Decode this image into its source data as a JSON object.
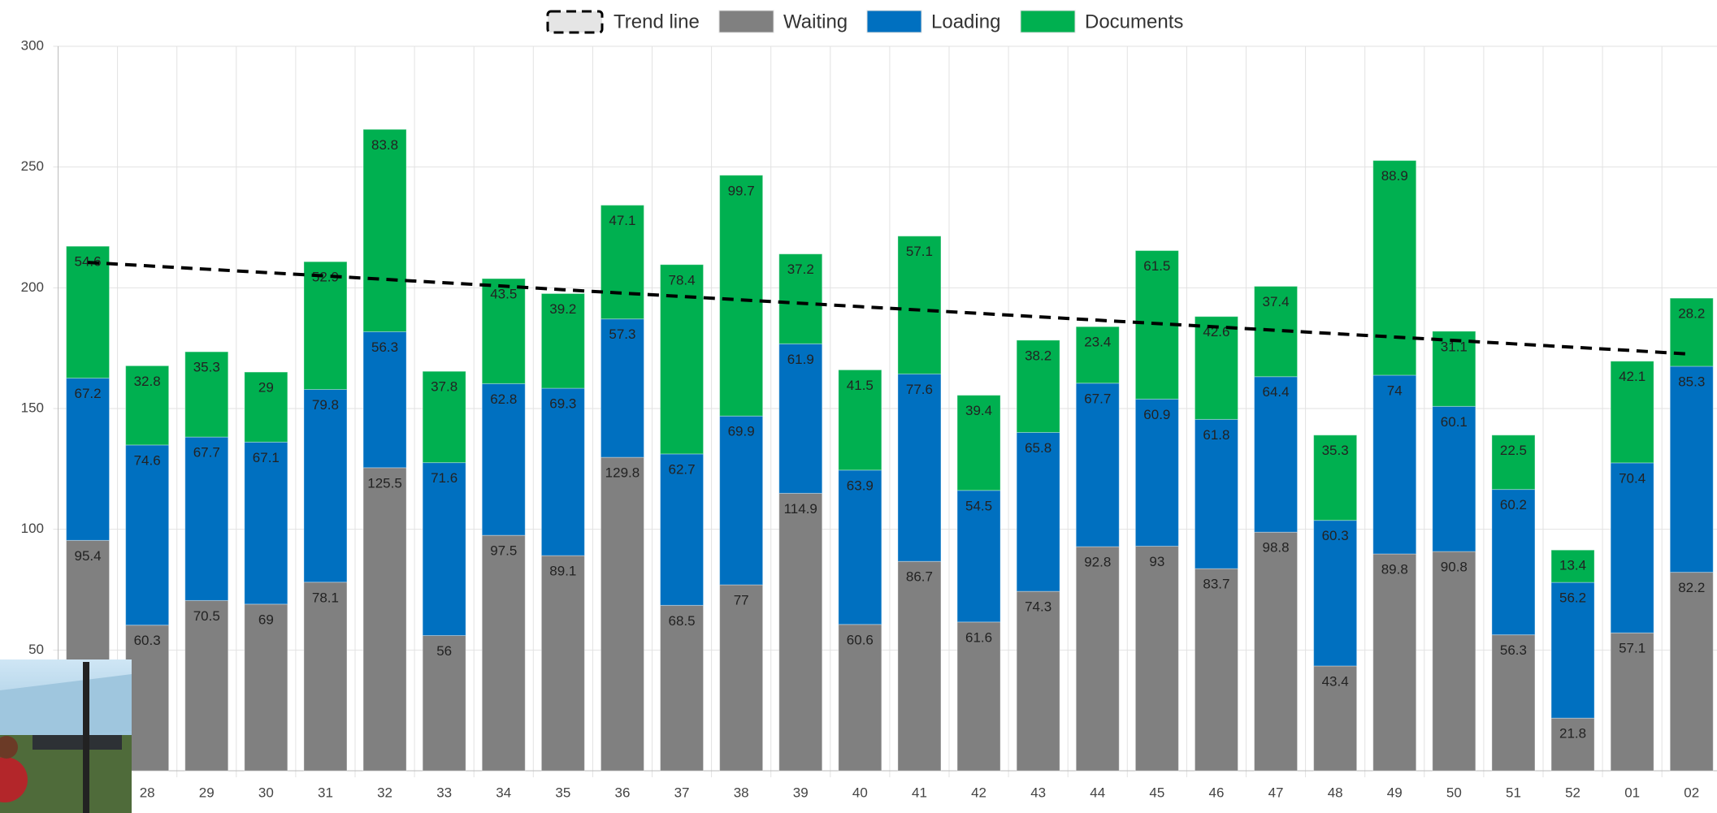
{
  "chart_data": {
    "type": "stacked_bar",
    "categories": [
      null,
      "28",
      "29",
      "30",
      "31",
      "32",
      "33",
      "34",
      "35",
      "36",
      "37",
      "38",
      "39",
      "40",
      "41",
      "42",
      "43",
      "44",
      "45",
      "46",
      "47",
      "48",
      "49",
      "50",
      "51",
      "52",
      "01",
      "02"
    ],
    "series": [
      {
        "name": "Waiting",
        "color": "#808080",
        "values": [
          95.4,
          60.3,
          70.5,
          69,
          78.1,
          125.5,
          56,
          97.5,
          89.1,
          129.8,
          68.5,
          77,
          114.9,
          60.6,
          86.7,
          61.6,
          74.3,
          92.8,
          93,
          83.7,
          98.8,
          43.4,
          89.8,
          90.8,
          56.3,
          21.8,
          57.1,
          82.2
        ]
      },
      {
        "name": "Loading",
        "color": "#0070c0",
        "values": [
          67.2,
          74.6,
          67.7,
          67.1,
          79.8,
          56.3,
          71.6,
          62.8,
          69.3,
          57.3,
          62.7,
          69.9,
          61.9,
          63.9,
          77.6,
          54.5,
          65.8,
          67.7,
          60.9,
          61.8,
          64.4,
          60.3,
          74,
          60.1,
          60.2,
          56.2,
          70.4,
          85.3
        ]
      },
      {
        "name": "Documents",
        "color": "#00b050",
        "values": [
          54.6,
          32.8,
          35.3,
          29,
          52.9,
          83.8,
          37.8,
          43.5,
          39.2,
          47.1,
          78.4,
          99.7,
          37.2,
          41.5,
          57.1,
          39.4,
          38.2,
          23.4,
          61.5,
          42.6,
          37.4,
          35.3,
          88.9,
          31.1,
          22.5,
          13.4,
          42.1,
          28.2
        ]
      }
    ],
    "trend": {
      "name": "Trend line",
      "color": "#000000",
      "values": [
        210.5,
        209.1,
        207.7,
        206.3,
        204.9,
        203.5,
        202.1,
        200.7,
        199.2,
        197.8,
        196.4,
        195.0,
        193.6,
        192.2,
        190.8,
        189.4,
        188.0,
        186.6,
        185.2,
        183.8,
        182.4,
        181.0,
        179.6,
        178.2,
        176.8,
        175.4,
        174.0,
        172.5
      ]
    },
    "ylim": [
      0,
      300
    ],
    "yticks": [
      50,
      100,
      150,
      200,
      250,
      300
    ],
    "grid": true,
    "legend": "top"
  }
}
